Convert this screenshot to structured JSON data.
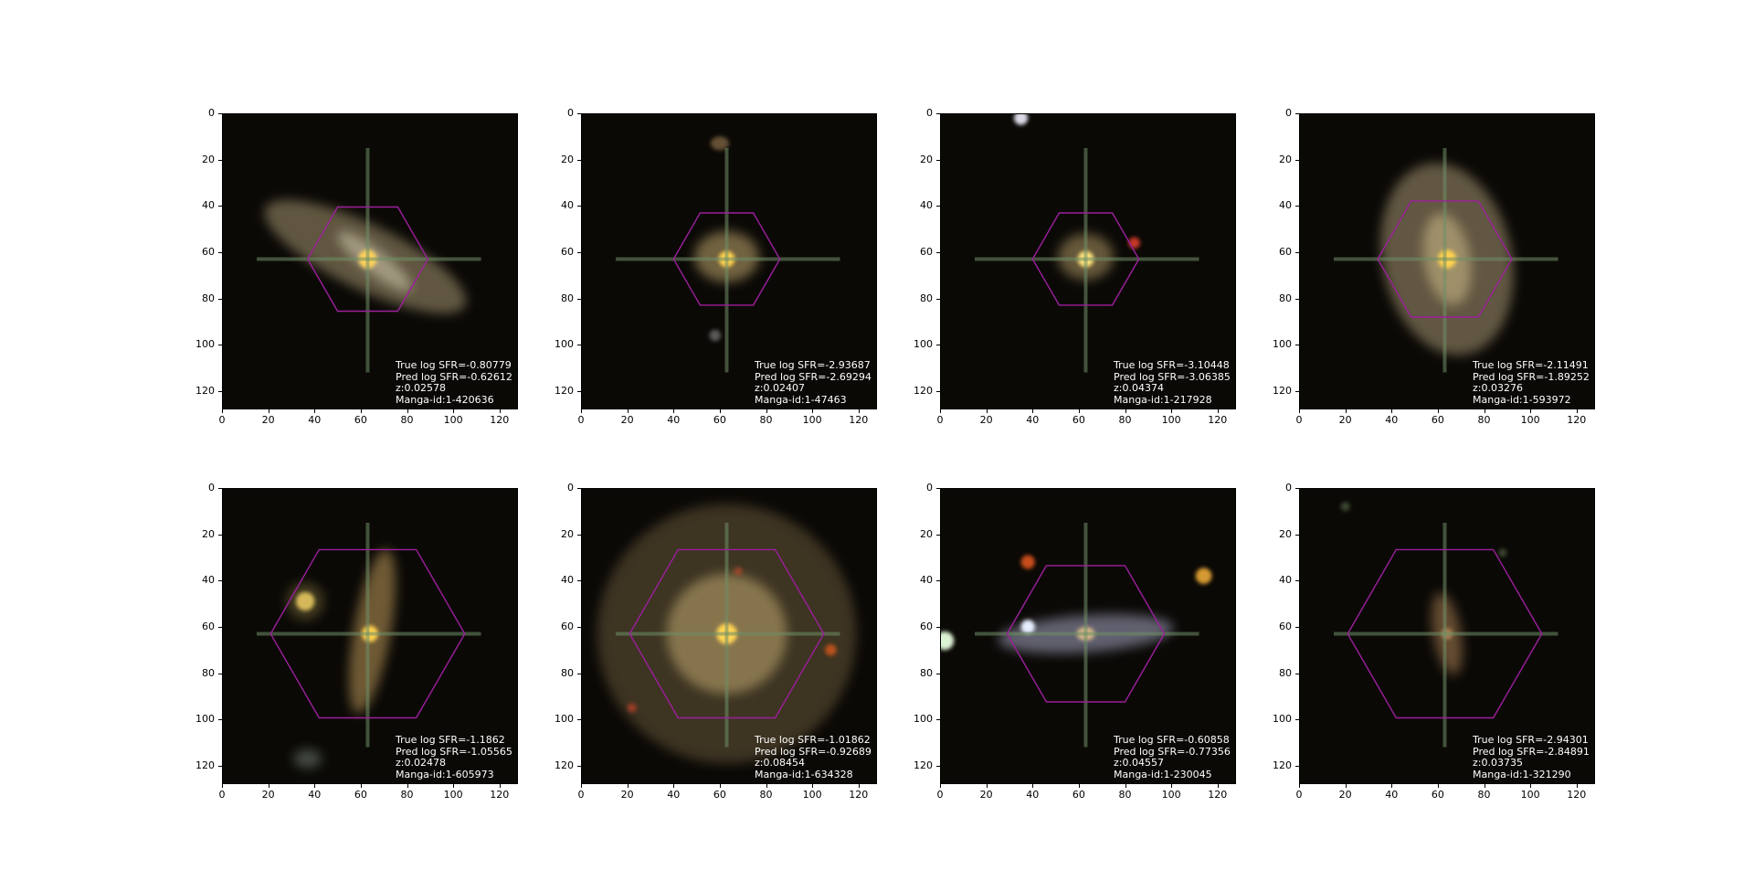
{
  "axis": {
    "yticks": [
      "0",
      "20",
      "40",
      "60",
      "80",
      "100",
      "120"
    ],
    "xticks": [
      "0",
      "20",
      "40",
      "60",
      "80",
      "100",
      "120"
    ]
  },
  "panels": [
    {
      "true_sfr": "True log SFR=-0.80779",
      "pred_sfr": "Pred log SFR=-0.62612",
      "z": "z:0.02578",
      "manga_id": "Manga-id:1-420636"
    },
    {
      "true_sfr": "True log SFR=-2.93687",
      "pred_sfr": "Pred log SFR=-2.69294",
      "z": "z:0.02407",
      "manga_id": "Manga-id:1-47463"
    },
    {
      "true_sfr": "True log SFR=-3.10448",
      "pred_sfr": "Pred log SFR=-3.06385",
      "z": "z:0.04374",
      "manga_id": "Manga-id:1-217928"
    },
    {
      "true_sfr": "True log SFR=-2.11491",
      "pred_sfr": "Pred log SFR=-1.89252",
      "z": "z:0.03276",
      "manga_id": "Manga-id:1-593972"
    },
    {
      "true_sfr": "True log SFR=-1.1862",
      "pred_sfr": "Pred log SFR=-1.05565",
      "z": "z:0.02478",
      "manga_id": "Manga-id:1-605973"
    },
    {
      "true_sfr": "True log SFR=-1.01862",
      "pred_sfr": "Pred log SFR=-0.92689",
      "z": "z:0.08454",
      "manga_id": "Manga-id:1-634328"
    },
    {
      "true_sfr": "True log SFR=-0.60858",
      "pred_sfr": "Pred log SFR=-0.77356",
      "z": "z:0.04557",
      "manga_id": "Manga-id:1-230045"
    },
    {
      "true_sfr": "True log SFR=-2.94301",
      "pred_sfr": "Pred log SFR=-2.84891",
      "z": "z:0.03735",
      "manga_id": "Manga-id:1-321290"
    }
  ],
  "colors": {
    "background": "#ffffff",
    "image_bg": "#0b0906",
    "hexagon": "#9c1f9c",
    "crosshair": "#6f8f67",
    "annotation_text": "#ffffff"
  }
}
